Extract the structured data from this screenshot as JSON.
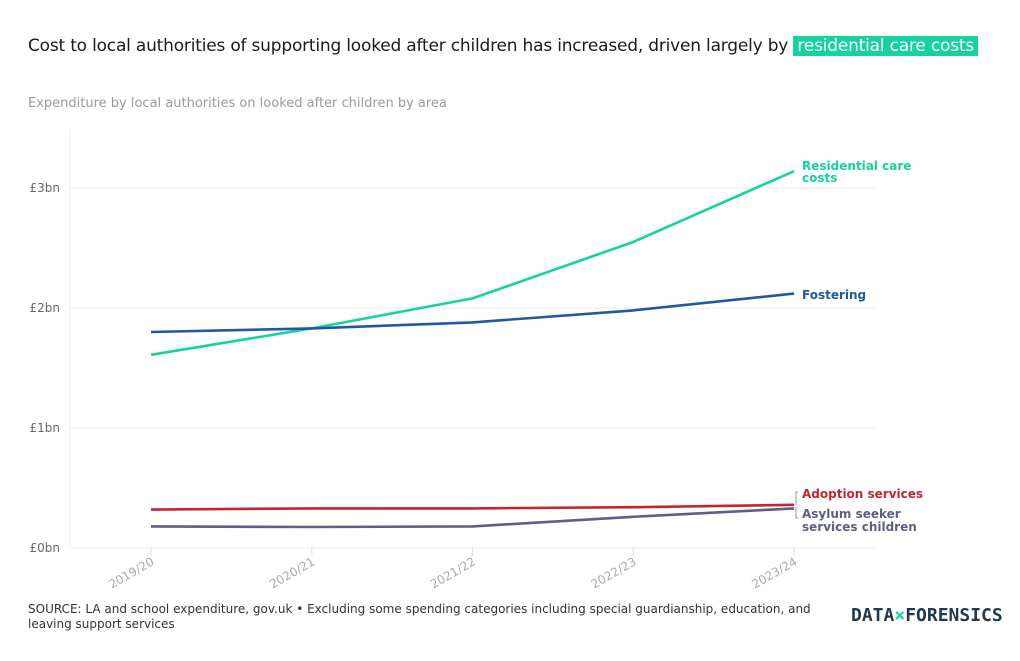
{
  "header": {
    "title": "Cost to local authorities of supporting looked after children has increased, driven largely by",
    "title_highlight": "residential care costs",
    "highlight_color": "#18d1a1",
    "subtitle": "Expenditure by local authorities on looked after children by area"
  },
  "chart_data": {
    "type": "line",
    "title": "Cost to local authorities of supporting looked after children has increased, driven largely by residential care costs",
    "subtitle": "Expenditure by local authorities on looked after children by area",
    "xlabel": "",
    "ylabel": "",
    "categories": [
      "2019/20",
      "2020/21",
      "2021/22",
      "2022/23",
      "2023/24"
    ],
    "ylim": [
      0,
      3.5
    ],
    "y_ticks": [
      0,
      1,
      2,
      3
    ],
    "y_tick_labels": [
      "£0bn",
      "£1bn",
      "£2bn",
      "£3bn"
    ],
    "y_unit": "£bn",
    "grid": true,
    "legend": "direct labels at line ends",
    "series": [
      {
        "name": "Residential care costs",
        "label_lines": [
          "Residential care",
          "costs"
        ],
        "color": "#18d1a1",
        "values": [
          1.61,
          1.83,
          2.08,
          2.55,
          3.14
        ]
      },
      {
        "name": "Fostering",
        "label_lines": [
          "Fostering"
        ],
        "color": "#1f5aa0",
        "values": [
          1.8,
          1.83,
          1.88,
          1.98,
          2.12
        ]
      },
      {
        "name": "Adoption services",
        "label_lines": [
          "Adoption services"
        ],
        "color": "#c4262e",
        "values": [
          0.32,
          0.33,
          0.33,
          0.34,
          0.36
        ]
      },
      {
        "name": "Asylum seeker services children",
        "label_lines": [
          "Asylum seeker",
          "services children"
        ],
        "color": "#5f5f85",
        "values": [
          0.18,
          0.175,
          0.18,
          0.26,
          0.33
        ]
      }
    ]
  },
  "footer": {
    "source": "SOURCE: LA and school expenditure, gov.uk • Excluding some spending categories including special guardianship, education, and leaving support services",
    "logo_left": "DATA",
    "logo_mid": "×",
    "logo_right": "FORENSICS"
  }
}
